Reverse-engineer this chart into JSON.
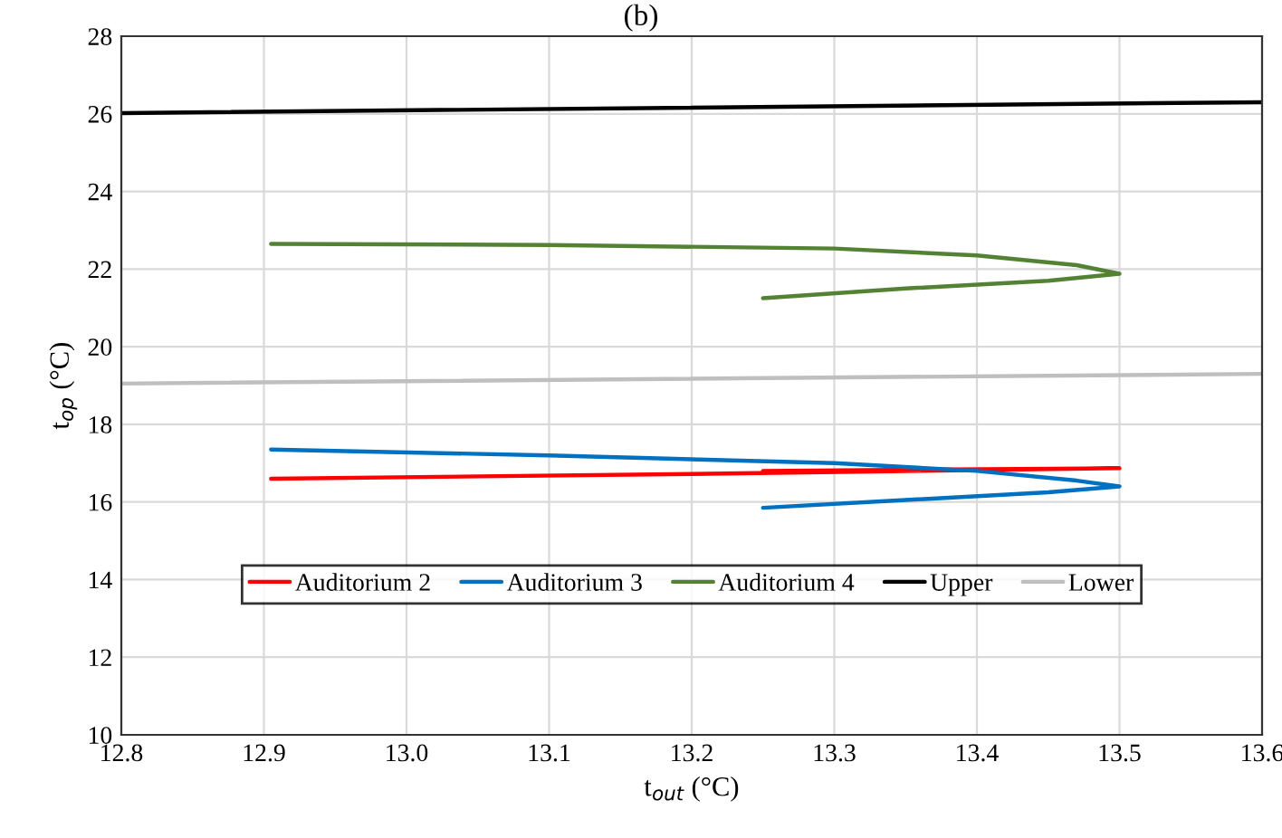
{
  "chart_data": {
    "type": "line",
    "title": "(b)",
    "xlabel": "t$_{out}$ (°C)",
    "ylabel": "t$_{op}$ (°C)",
    "xlim": [
      12.8,
      13.6
    ],
    "xticks": [
      {
        "value": 12.8,
        "label": "12.8"
      },
      {
        "value": 12.9,
        "label": "12.9"
      },
      {
        "value": 13.0,
        "label": "13.0"
      },
      {
        "value": 13.1,
        "label": "13.1"
      },
      {
        "value": 13.2,
        "label": "13.2"
      },
      {
        "value": 13.3,
        "label": "13.3"
      },
      {
        "value": 13.4,
        "label": "13.4"
      },
      {
        "value": 13.5,
        "label": "13.5"
      },
      {
        "value": 13.6,
        "label": "13.6"
      }
    ],
    "ylim": [
      10,
      28
    ],
    "yticks": [
      10,
      12,
      14,
      16,
      18,
      20,
      22,
      24,
      26,
      28
    ],
    "grid": true,
    "legend": "bottom",
    "marker": "none",
    "line_style": "solid",
    "series": [
      {
        "name": "Auditorium 2",
        "color": "#ff0000",
        "x": [
          12.905,
          13.2,
          13.5,
          13.25
        ],
        "values": [
          16.6,
          16.72,
          16.87,
          16.8
        ]
      },
      {
        "name": "Auditorium 3",
        "color": "#0070c0",
        "x": [
          12.905,
          13.1,
          13.3,
          13.4,
          13.47,
          13.5,
          13.45,
          13.35,
          13.25
        ],
        "values": [
          17.35,
          17.2,
          17.0,
          16.8,
          16.55,
          16.4,
          16.25,
          16.05,
          15.85
        ]
      },
      {
        "name": "Auditorium 4",
        "color": "#548235",
        "x": [
          12.905,
          13.1,
          13.3,
          13.4,
          13.47,
          13.5,
          13.45,
          13.35,
          13.25
        ],
        "values": [
          22.65,
          22.62,
          22.53,
          22.35,
          22.1,
          21.88,
          21.7,
          21.5,
          21.25
        ]
      },
      {
        "name": "Upper",
        "color": "#000000",
        "x": [
          12.8,
          13.6
        ],
        "values": [
          26.02,
          26.3
        ]
      },
      {
        "name": "Lower",
        "color": "#bfbfbf",
        "x": [
          12.8,
          13.6
        ],
        "values": [
          19.05,
          19.3
        ]
      }
    ]
  }
}
